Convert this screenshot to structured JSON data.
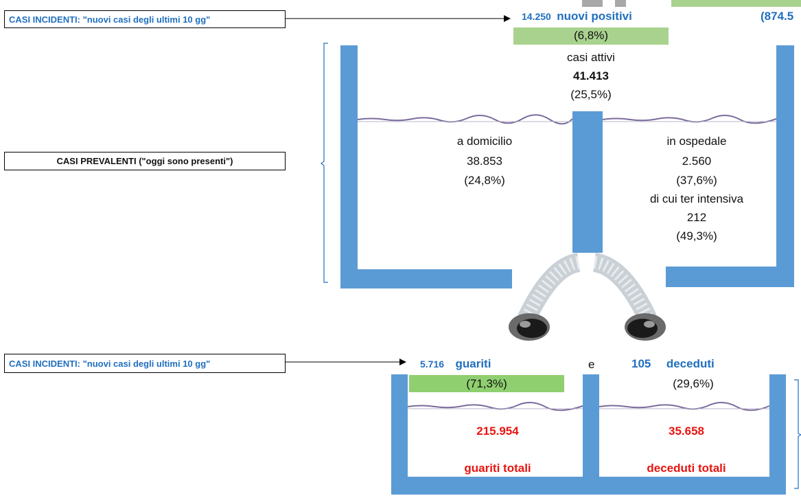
{
  "labels": {
    "incident_top": "CASI INCIDENTI: \"nuovi casi degli ultimi 10 gg\"",
    "prevalent": "CASI PREVALENTI (\"oggi sono presenti\")",
    "incident_bottom": "CASI INCIDENTI: \"nuovi casi degli ultimi 10 gg\""
  },
  "top": {
    "new_positive_count": "14.250",
    "new_positive_label": "nuovi positivi",
    "new_positive_pct": "(6,8%)",
    "right_cut_text": "(874.5",
    "active_label": "casi attivi",
    "active_count": "41.413",
    "active_pct": "(25,5%)"
  },
  "tank_left": {
    "label": "a domicilio",
    "count": "38.853",
    "pct": "(24,8%)"
  },
  "tank_right": {
    "label": "in ospedale",
    "count": "2.560",
    "pct": "(37,6%)",
    "sub_label": "di cui ter intensiva",
    "sub_count": "212",
    "sub_pct": "(49,3%)"
  },
  "bottom": {
    "recovered_count": "5.716",
    "recovered_label": "guariti",
    "recovered_pct": "(71,3%)",
    "conj": "e",
    "deceased_count": "105",
    "deceased_label": "deceduti",
    "deceased_pct": "(29,6%)",
    "recovered_total": "215.954",
    "recovered_total_label": "guariti totali",
    "deceased_total": "35.658",
    "deceased_total_label": "deceduti totali"
  },
  "colors": {
    "wall": "#5b9bd5",
    "blue_text": "#1f6fbf",
    "red_text": "#e8140f",
    "green_bar": "#8fcf6f"
  },
  "icons": [
    "arrow-right-icon",
    "bracket-left-icon",
    "bracket-right-icon",
    "hose-left-icon",
    "hose-right-icon",
    "water-surface-icon"
  ]
}
